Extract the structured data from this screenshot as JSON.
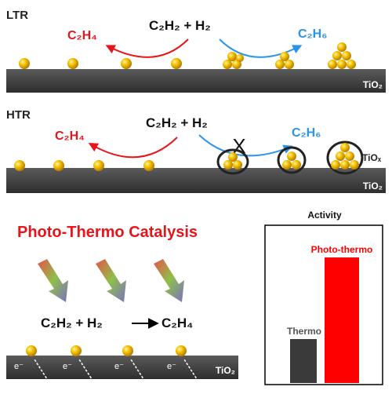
{
  "ltr": {
    "label": "LTR",
    "reactants": "C₂H₂ + H₂",
    "left_product": "C₂H₄",
    "right_product": "C₂H₆",
    "support": "TiO₂"
  },
  "htr": {
    "label": "HTR",
    "reactants": "C₂H₂ + H₂",
    "left_product": "C₂H₄",
    "right_product": "C₂H₆",
    "overlayer": "TiOₓ",
    "support": "TiO₂",
    "blocked_mark": "X"
  },
  "photo": {
    "title": "Photo-Thermo Catalysis",
    "reaction_left": "C₂H₂ + H₂",
    "reaction_right": "C₂H₄",
    "electron": "e⁻",
    "support": "TiO₂"
  },
  "chart_data": {
    "type": "bar",
    "title": "Activity",
    "categories": [
      "Thermo",
      "Photo-thermo"
    ],
    "values": [
      0.35,
      1.0
    ],
    "colors": [
      "#3a3a3a",
      "#ff0000"
    ]
  },
  "colors": {
    "red": "#e8141b",
    "blue": "#2a95e8",
    "support": "#3a3a3a",
    "gold": "#f2b300"
  }
}
